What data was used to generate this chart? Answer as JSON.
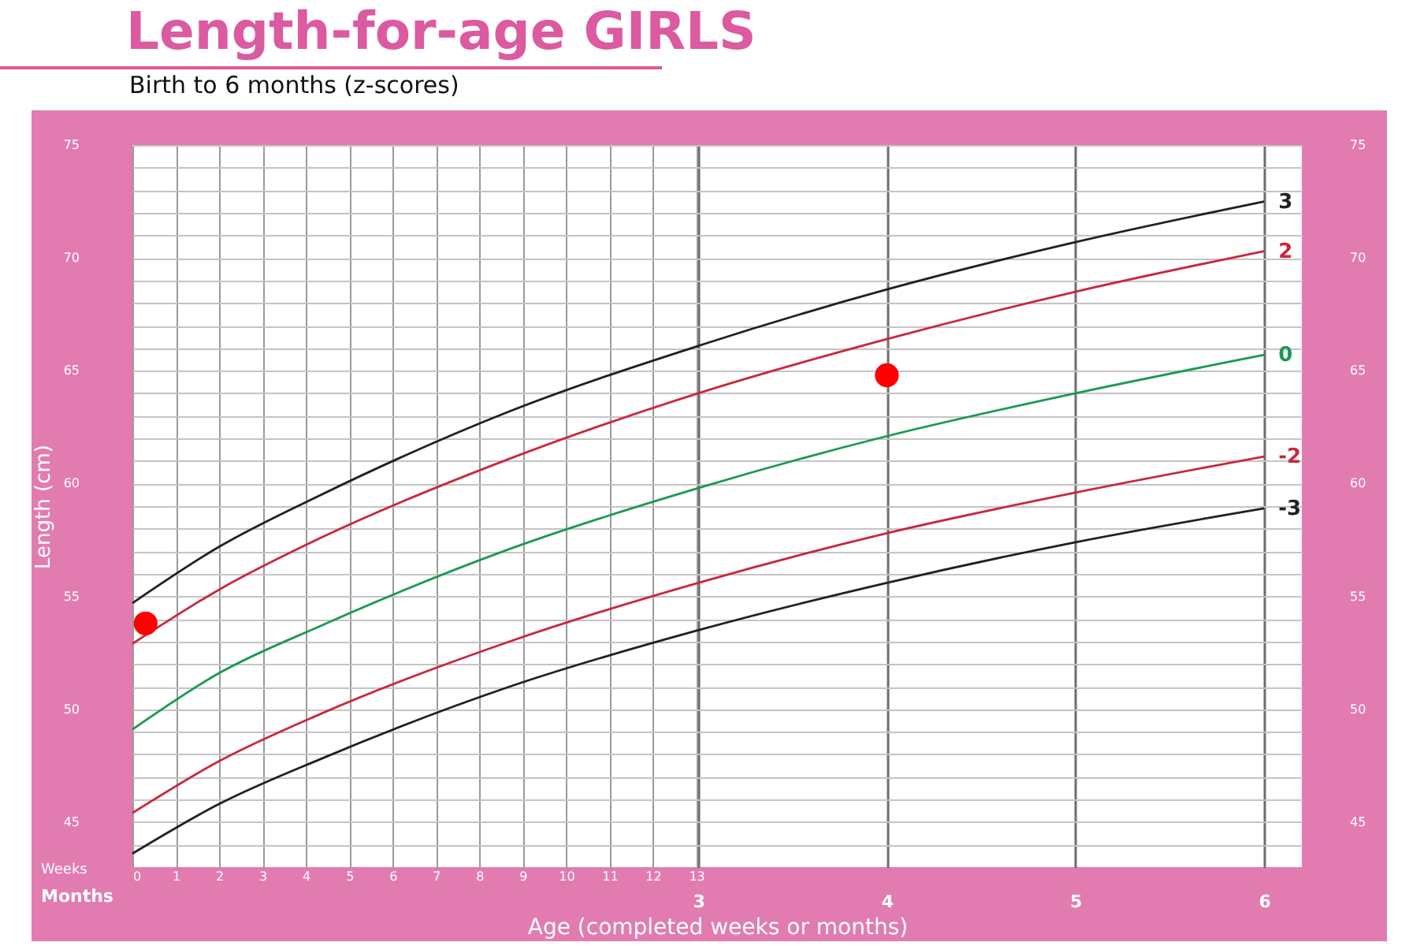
{
  "chart_data": {
    "type": "line",
    "title": "Length-for-age GIRLS",
    "subtitle": "Birth to 6 months (z-scores)",
    "xlabel": "Age (completed weeks or months)",
    "ylabel": "Length (cm)",
    "annotations": [
      "Weeks",
      "Months"
    ],
    "x": [
      0,
      0.46,
      1,
      2,
      3,
      4,
      5,
      6
    ],
    "series": [
      {
        "name": "3",
        "color": "#231f20",
        "values": [
          54.7,
          57.2,
          59.5,
          63.2,
          66.1,
          68.6,
          70.7,
          72.5
        ]
      },
      {
        "name": "2",
        "color": "#c8283c",
        "values": [
          52.9,
          55.3,
          57.6,
          61.1,
          64.0,
          66.4,
          68.5,
          70.3
        ]
      },
      {
        "name": "0",
        "color": "#1a9a50",
        "values": [
          49.1,
          51.6,
          53.7,
          57.1,
          59.8,
          62.1,
          64.0,
          65.7
        ]
      },
      {
        "name": "-2",
        "color": "#c8283c",
        "values": [
          45.4,
          47.7,
          49.8,
          53.0,
          55.6,
          57.8,
          59.6,
          61.2
        ]
      },
      {
        "name": "-3",
        "color": "#231f20",
        "values": [
          43.6,
          45.8,
          47.8,
          51.0,
          53.5,
          55.6,
          57.4,
          58.9
        ]
      },
      {
        "type": "scatter",
        "marker": "circle",
        "color": "#ff0000",
        "x": [
          0.07,
          4.0
        ],
        "values": [
          53.8,
          64.8
        ]
      }
    ],
    "xlim": [
      0,
      6.2
    ],
    "xticks": [
      3,
      4,
      5,
      6
    ],
    "x2lim": [
      0,
      26.96
    ],
    "x2ticks": [
      0,
      1,
      2,
      3,
      4,
      5,
      6,
      7,
      8,
      9,
      10,
      11,
      12,
      13
    ],
    "ylim": [
      43,
      75
    ],
    "yticks": [
      {
        "value": 44,
        "label": null
      },
      45,
      {
        "value": 46,
        "label": null
      },
      {
        "value": 47,
        "label": null
      },
      {
        "value": 48,
        "label": null
      },
      {
        "value": 49,
        "label": null
      },
      50,
      {
        "value": 51,
        "label": null
      },
      {
        "value": 52,
        "label": null
      },
      {
        "value": 53,
        "label": null
      },
      {
        "value": 54,
        "label": null
      },
      55,
      {
        "value": 56,
        "label": null
      },
      {
        "value": 57,
        "label": null
      },
      {
        "value": 58,
        "label": null
      },
      {
        "value": 59,
        "label": null
      },
      60,
      {
        "value": 61,
        "label": null
      },
      {
        "value": 62,
        "label": null
      },
      {
        "value": 63,
        "label": null
      },
      {
        "value": 64,
        "label": null
      },
      65,
      {
        "value": 66,
        "label": null
      },
      {
        "value": 67,
        "label": null
      },
      {
        "value": 68,
        "label": null
      },
      {
        "value": 69,
        "label": null
      },
      70,
      {
        "value": 71,
        "label": null
      },
      {
        "value": 72,
        "label": null
      },
      {
        "value": 73,
        "label": null
      },
      {
        "value": 74,
        "label": null
      },
      75
    ],
    "y2lim": [
      43,
      75
    ],
    "y2ticks": [
      45,
      50,
      55,
      60,
      65,
      70,
      75
    ],
    "grid": true,
    "legend": false,
    "line_style": "solid"
  }
}
